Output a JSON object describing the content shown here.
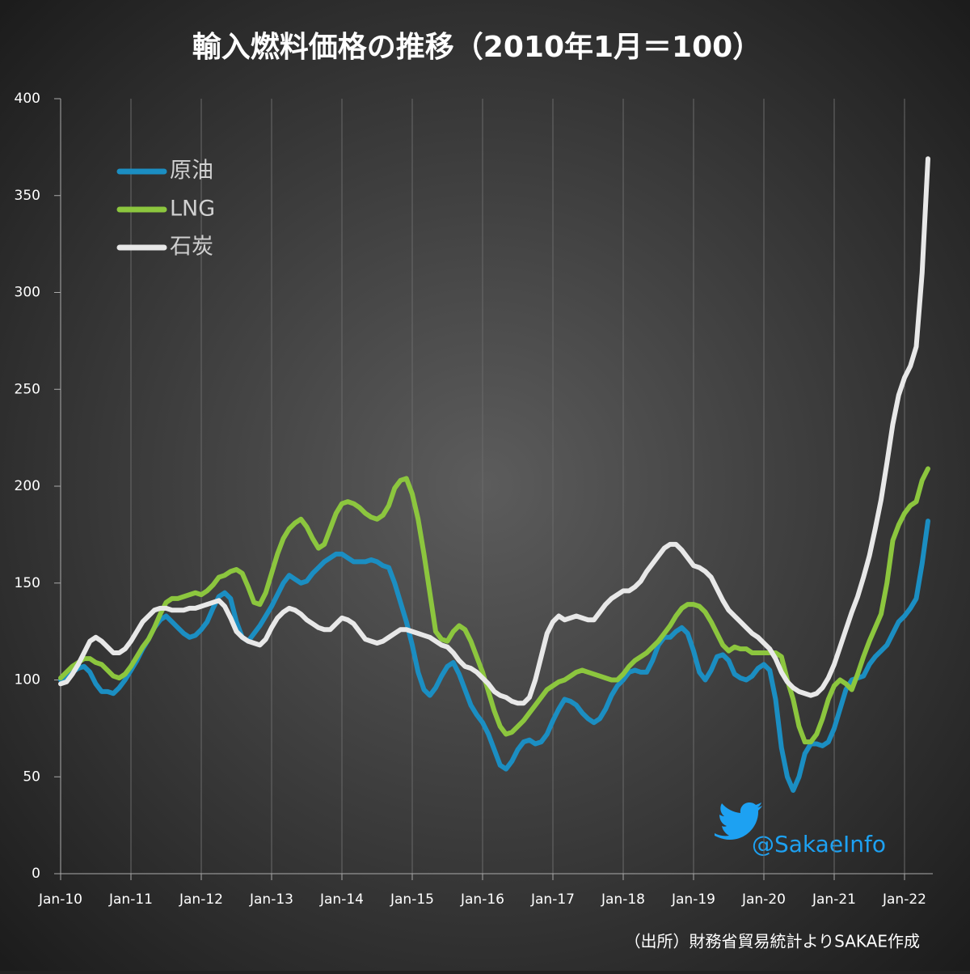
{
  "chart_data": {
    "type": "line",
    "title": "輸入燃料価格の推移（2010年1月＝100）",
    "source": "（出所）財務省貿易統計よりSAKAE作成",
    "credit": "@SakaeInfo",
    "categories": [
      "Jan-10",
      null,
      null,
      null,
      null,
      null,
      null,
      null,
      null,
      null,
      null,
      null,
      "Jan-11",
      null,
      null,
      null,
      null,
      null,
      null,
      null,
      null,
      null,
      null,
      null,
      "Jan-12",
      null,
      null,
      null,
      null,
      null,
      null,
      null,
      null,
      null,
      null,
      null,
      "Jan-13",
      null,
      null,
      null,
      null,
      null,
      null,
      null,
      null,
      null,
      null,
      null,
      "Jan-14",
      null,
      null,
      null,
      null,
      null,
      null,
      null,
      null,
      null,
      null,
      null,
      "Jan-15",
      null,
      null,
      null,
      null,
      null,
      null,
      null,
      null,
      null,
      null,
      null,
      "Jan-16",
      null,
      null,
      null,
      null,
      null,
      null,
      null,
      null,
      null,
      null,
      null,
      "Jan-17",
      null,
      null,
      null,
      null,
      null,
      null,
      null,
      null,
      null,
      null,
      null,
      "Jan-18",
      null,
      null,
      null,
      null,
      null,
      null,
      null,
      null,
      null,
      null,
      null,
      "Jan-19",
      null,
      null,
      null,
      null,
      null,
      null,
      null,
      null,
      null,
      null,
      null,
      "Jan-20",
      null,
      null,
      null,
      null,
      null,
      null,
      null,
      null,
      null,
      null,
      null,
      "Jan-21",
      null,
      null,
      null,
      null,
      null,
      null,
      null,
      null,
      null,
      null,
      null,
      "Jan-22",
      null,
      null,
      null,
      null
    ],
    "series": [
      {
        "name": "原油",
        "color": "#1b8ec2",
        "values": [
          100,
          102,
          104,
          106,
          107,
          104,
          98,
          94,
          94,
          93,
          96,
          100,
          105,
          110,
          116,
          121,
          127,
          131,
          133,
          130,
          127,
          124,
          122,
          123,
          126,
          130,
          137,
          143,
          145,
          142,
          130,
          122,
          120,
          124,
          128,
          133,
          138,
          144,
          150,
          154,
          152,
          150,
          151,
          155,
          158,
          161,
          163,
          165,
          165,
          163,
          161,
          161,
          161,
          162,
          161,
          159,
          158,
          150,
          140,
          130,
          118,
          104,
          95,
          92,
          96,
          102,
          107,
          109,
          103,
          95,
          87,
          82,
          78,
          72,
          64,
          56,
          54,
          58,
          64,
          68,
          69,
          67,
          68,
          72,
          79,
          85,
          90,
          89,
          87,
          83,
          80,
          78,
          80,
          85,
          92,
          97,
          100,
          104,
          105,
          104,
          104,
          110,
          118,
          122,
          122,
          125,
          127,
          124,
          115,
          104,
          100,
          105,
          112,
          113,
          110,
          103,
          101,
          100,
          102,
          106,
          108,
          105,
          90,
          65,
          50,
          43,
          50,
          62,
          67,
          67,
          66,
          68,
          75,
          85,
          95,
          100,
          101,
          102,
          108,
          112,
          115,
          118,
          124,
          130,
          133,
          137,
          142,
          160,
          182
        ]
      },
      {
        "name": "LNG",
        "color": "#8cc63e",
        "values": [
          101,
          104,
          107,
          109,
          111,
          111,
          109,
          108,
          105,
          102,
          101,
          103,
          107,
          112,
          117,
          121,
          127,
          134,
          140,
          142,
          142,
          143,
          144,
          145,
          144,
          146,
          149,
          153,
          154,
          156,
          157,
          155,
          148,
          140,
          139,
          145,
          155,
          165,
          173,
          178,
          181,
          183,
          179,
          173,
          168,
          170,
          178,
          186,
          191,
          192,
          191,
          189,
          186,
          184,
          183,
          185,
          190,
          199,
          203,
          204,
          196,
          183,
          165,
          145,
          125,
          121,
          120,
          125,
          128,
          126,
          120,
          112,
          104,
          94,
          84,
          76,
          72,
          73,
          76,
          79,
          83,
          87,
          91,
          95,
          97,
          99,
          100,
          102,
          104,
          105,
          104,
          103,
          102,
          101,
          100,
          100,
          103,
          107,
          110,
          112,
          114,
          117,
          120,
          124,
          128,
          133,
          137,
          139,
          139,
          138,
          135,
          130,
          124,
          118,
          115,
          117,
          116,
          116,
          114,
          114,
          114,
          114,
          114,
          112,
          100,
          90,
          76,
          68,
          68,
          72,
          80,
          90,
          97,
          100,
          98,
          95,
          103,
          112,
          120,
          127,
          134,
          150,
          172,
          180,
          186,
          190,
          192,
          203,
          209
        ]
      },
      {
        "name": "石炭",
        "color": "#e8e8e8",
        "values": [
          98,
          99,
          103,
          108,
          114,
          120,
          122,
          120,
          117,
          114,
          114,
          116,
          120,
          125,
          130,
          133,
          136,
          137,
          137,
          136,
          136,
          136,
          137,
          137,
          138,
          139,
          140,
          141,
          138,
          132,
          125,
          122,
          120,
          119,
          118,
          121,
          127,
          132,
          135,
          137,
          136,
          134,
          131,
          129,
          127,
          126,
          126,
          129,
          132,
          131,
          129,
          125,
          121,
          120,
          119,
          120,
          122,
          124,
          126,
          126,
          125,
          124,
          123,
          122,
          120,
          118,
          117,
          114,
          110,
          107,
          106,
          104,
          101,
          98,
          94,
          92,
          91,
          89,
          88,
          88,
          91,
          100,
          112,
          124,
          130,
          133,
          131,
          132,
          133,
          132,
          131,
          131,
          135,
          139,
          142,
          144,
          146,
          146,
          148,
          151,
          156,
          160,
          164,
          168,
          170,
          170,
          167,
          163,
          159,
          158,
          156,
          153,
          147,
          141,
          136,
          133,
          130,
          127,
          124,
          122,
          119,
          116,
          111,
          104,
          99,
          96,
          94,
          93,
          92,
          93,
          96,
          101,
          108,
          117,
          126,
          135,
          143,
          153,
          164,
          178,
          193,
          212,
          232,
          247,
          256,
          262,
          272,
          310,
          369
        ]
      }
    ],
    "ylim": [
      0,
      400
    ],
    "yticks": [
      0,
      50,
      100,
      150,
      200,
      250,
      300,
      350,
      400
    ],
    "grid": true,
    "legend": "upper-left"
  }
}
